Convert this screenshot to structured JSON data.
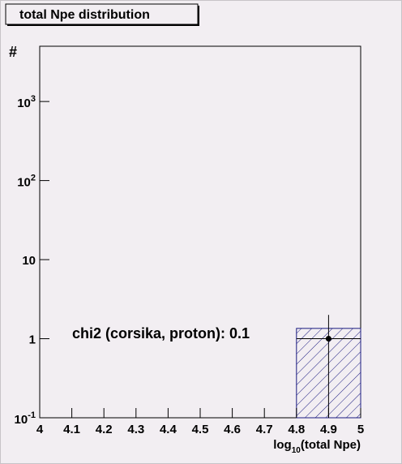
{
  "chart_data": {
    "type": "histogram",
    "title": "total Npe distribution",
    "ylabel": "#",
    "xlabel": {
      "text": "log",
      "subscript": "10",
      "suffix": "(total Npe)"
    },
    "annotation": "chi2 (corsika, proton): 0.1",
    "xlim": [
      4,
      5
    ],
    "xticks": [
      4,
      4.1,
      4.2,
      4.3,
      4.4,
      4.5,
      4.6,
      4.7,
      4.8,
      4.9,
      5
    ],
    "ylim": [
      0.1,
      5000
    ],
    "ylog": true,
    "yticks": [
      {
        "value": 0.1,
        "label": "10",
        "exponent": "-1"
      },
      1,
      10,
      {
        "value": 100,
        "label": "10",
        "exponent": "2"
      },
      {
        "value": 1000,
        "label": "10",
        "exponent": "3"
      }
    ],
    "bins": [
      4.8,
      5
    ],
    "counts": [
      1.35
    ],
    "color": "#1a1a80",
    "points": {
      "x": [
        4.9
      ],
      "values": [
        1
      ],
      "errors": [
        1
      ],
      "xerrors": [
        0.1
      ],
      "color": "#000000"
    }
  }
}
